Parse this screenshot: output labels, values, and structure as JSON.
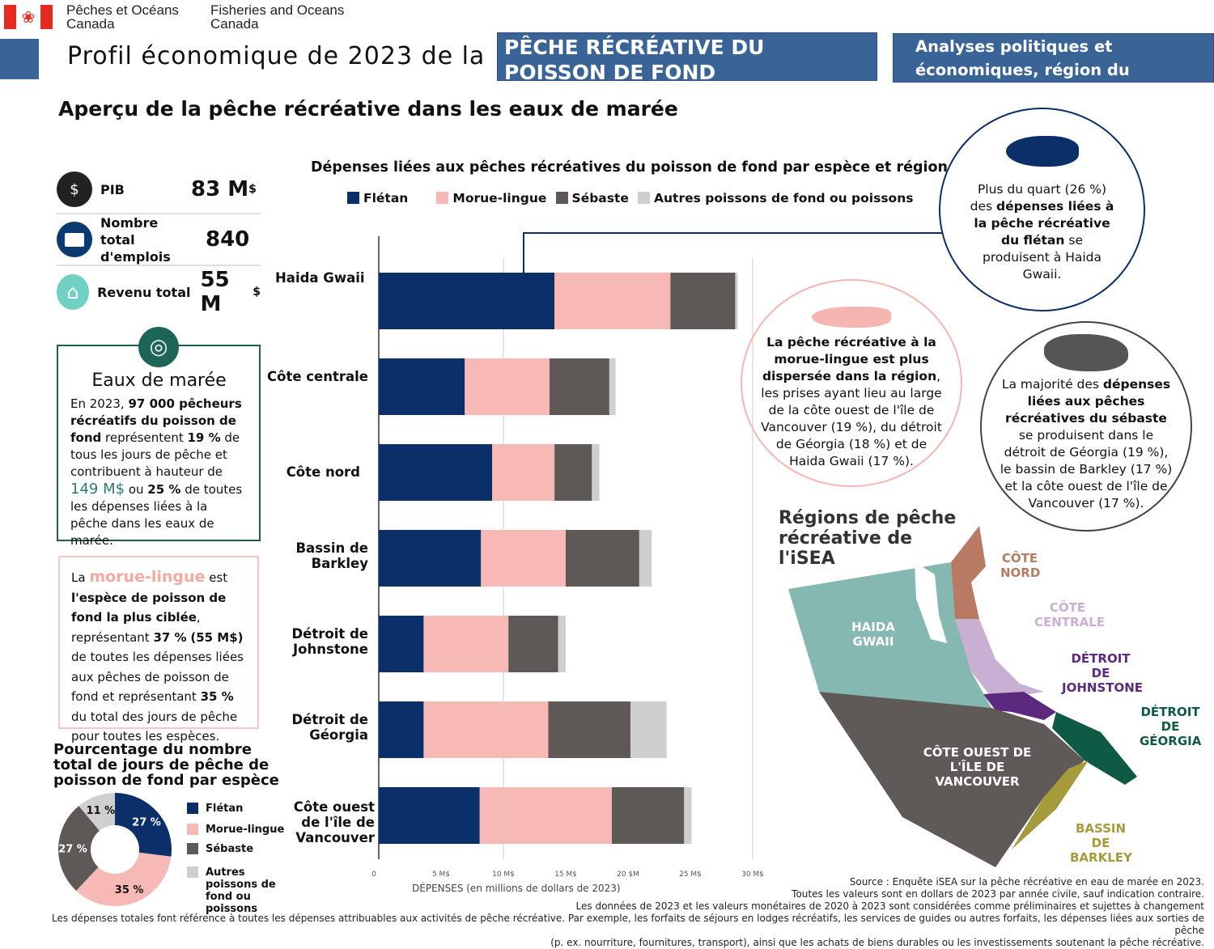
{
  "header": {
    "dept_fr": [
      "Pêches et Océans",
      "Canada"
    ],
    "dept_en": [
      "Fisheries and Oceans",
      "Canada"
    ],
    "title_prefix": "Profil économique de 2023 de la",
    "title_box": "PÊCHE RÉCRÉATIVE DU POISSON DE FOND",
    "region_box": "Analyses politiques et économiques, région du Pacifique"
  },
  "subtitle": "Aperçu de la pêche récréative dans les eaux de marée",
  "kpis": [
    {
      "label": "PIB",
      "value": "83 M",
      "unit": "$",
      "icon": "hands-dollar-icon"
    },
    {
      "label": "Nombre total d'emplois",
      "value": "840",
      "unit": "",
      "icon": "briefcase-icon"
    },
    {
      "label": "Revenu total",
      "value": "55 M",
      "unit": "$",
      "icon": "house-icon"
    }
  ],
  "tidal": {
    "title": "Eaux de marée",
    "t1": "En 2023, ",
    "b1": "97 000 pêcheurs récréatifs du poisson de fond",
    "t2": " représentent ",
    "b2": "19 %",
    "t3": " de tous les jours de pêche et contribuent à hauteur de ",
    "b3": "149 M$",
    "t4": " ou ",
    "b4": "25 %",
    "t5": " de toutes les dépenses liées à la pêche dans les eaux de marée."
  },
  "lingcod_box": {
    "t1": "La ",
    "hl": "morue-lingue",
    "t2": " est ",
    "b1": "l'espèce de poisson de fond la plus ciblée",
    "t3": ", représentant ",
    "b2": "37 %",
    "t4": " ",
    "b3": "(55 M$)",
    "t5": " de toutes les dépenses liées aux pêches de poisson de fond et représentant ",
    "b4": "35 %",
    "t6": " du total des jours de pêche pour toutes les espèces."
  },
  "colors": {
    "fletan": "#0b2f69",
    "morue": "#f7b9b5",
    "sebaste": "#5e5956",
    "autres": "#cfcfcf",
    "accent_teal": "#2a7f72",
    "pink_accent": "#f4a9a3"
  },
  "chart_data": [
    {
      "type": "bar",
      "orientation": "horizontal-stacked",
      "title": "Dépenses liées aux pêches récréatives du poisson de fond par espèce et région",
      "xlabel": "DÉPENSES (en millions de dollars de 2023)",
      "xlim": [
        0,
        30
      ],
      "xticks": [
        "0",
        "5 M$",
        "10 M$",
        "15 M$",
        "20 $M",
        "25 M$",
        "30 M$"
      ],
      "grid": true,
      "legend": "top",
      "categories": [
        "Haida Gwaii",
        "Côte centrale",
        "Côte nord",
        "Bassin de Barkley",
        "Détroit de Johnstone",
        "Détroit de Géorgia",
        "Côte ouest de l'île de Vancouver"
      ],
      "series": [
        {
          "name": "Flétan",
          "values": [
            14.1,
            6.9,
            9.1,
            8.2,
            3.6,
            3.6,
            8.1
          ]
        },
        {
          "name": "Morue-lingue",
          "values": [
            9.3,
            6.8,
            5.0,
            6.8,
            6.8,
            10.0,
            10.6
          ]
        },
        {
          "name": "Sébaste",
          "values": [
            5.2,
            4.8,
            3.0,
            5.9,
            4.0,
            6.6,
            5.8
          ]
        },
        {
          "name": "Autres poissons de fond ou poissons",
          "values": [
            0.2,
            0.5,
            0.6,
            1.0,
            0.6,
            2.9,
            0.6
          ]
        }
      ]
    },
    {
      "type": "pie",
      "title": "Pourcentage du nombre total de jours de pêche de poisson de fond par espèce",
      "legend": "right",
      "categories": [
        "Flétan",
        "Morue-lingue",
        "Sébaste",
        "Autres poissons de fond ou poissons"
      ],
      "values": [
        27,
        35,
        27,
        11
      ],
      "labels": [
        "27 %",
        "35 %",
        "27 %",
        "11 %"
      ]
    }
  ],
  "callouts": {
    "halibut": {
      "t1": "Plus du quart (26 %) des ",
      "b1": "dépenses liées à la pêche récréative du flétan",
      "t2": " se produisent à Haida Gwaii."
    },
    "lingcod": {
      "b1": "La pêche récréative à la morue-lingue est plus dispersée dans la région",
      "t1": ", les prises ayant lieu au large de la côte ouest de l'île de Vancouver (19 %), du détroit de Géorgia (18 %) et de Haida Gwaii (17 %)."
    },
    "rockfish": {
      "t1": "La majorité des ",
      "b1": "dépenses liées aux pêches récréatives du sébaste",
      "t2": " se produisent dans le détroit de Géorgia (19 %), le bassin de Barkley (17 %) et la côte ouest de l'île de Vancouver (17 %)."
    }
  },
  "map": {
    "title": "Régions de pêche récréative de l'iSEA",
    "regions": [
      {
        "label": "CÔTE NORD",
        "color": "#b97a63"
      },
      {
        "label": "CÔTE CENTRALE",
        "color": "#c9b0d3"
      },
      {
        "label": "HAIDA GWAII",
        "color": "#86b8b2"
      },
      {
        "label": "DÉTROIT DE JOHNSTONE",
        "color": "#5b2a7e"
      },
      {
        "label": "DÉTROIT DE GÉORGIA",
        "color": "#0f5a45"
      },
      {
        "label": "CÔTE OUEST DE L'ÎLE DE VANCOUVER",
        "color": "#5f5a57"
      },
      {
        "label": "BASSIN DE BARKLEY",
        "color": "#a59b3a"
      }
    ]
  },
  "footer": [
    "Source : Enquête iSEA sur la pêche récréative en eau de marée en 2023.",
    "Toutes les valeurs sont en dollars de 2023 par année civile, sauf indication contraire.",
    "Les données de 2023 et les valeurs monétaires de 2020 à 2023 sont considérées comme préliminaires et sujettes à changement",
    "Les dépenses totales font référence à toutes les dépenses attribuables aux activités de pêche récréative. Par exemple, les forfaits de séjours en lodges récréatifs, les services de guides ou autres forfaits, les dépenses liées aux sorties de pêche",
    "(p. ex. nourriture, fournitures, transport), ainsi que les achats de biens durables ou les investissements soutenant la pêche récréative."
  ]
}
